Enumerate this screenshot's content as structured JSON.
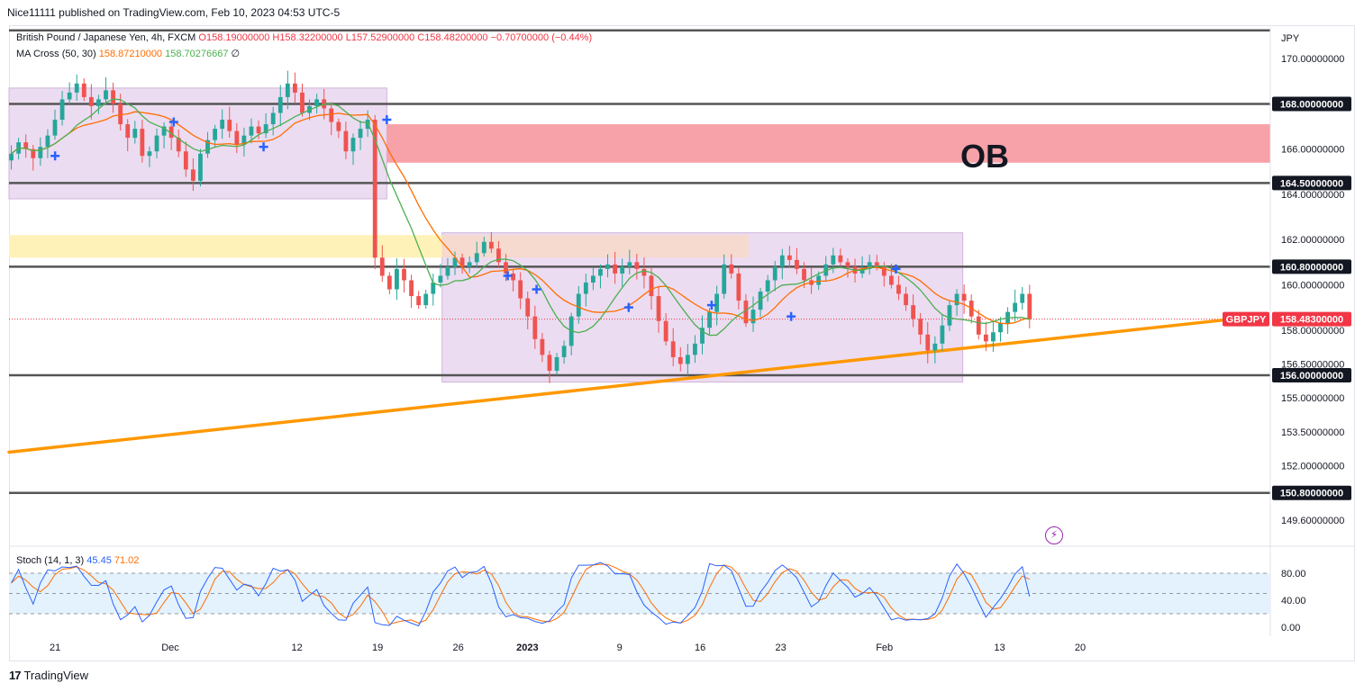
{
  "header": {
    "published": "Nice11111 published on TradingView.com, Feb 10, 2023 04:53 UTC-5"
  },
  "legend": {
    "symbol": "British Pound / Japanese Yen, 4h, FXCM",
    "ohlc": "O158.19000000 H158.32200000 L157.52900000 C158.48200000 −0.70700000 (−0.44%)",
    "ma_label": "MA Cross (50, 30)",
    "ma_value1": "158.87210000",
    "ma_value2": "158.70276667",
    "ma_tail": "∅",
    "stoch_label": "Stoch (14, 1, 3)",
    "stoch_k": "45.45",
    "stoch_d": "71.02"
  },
  "colors": {
    "candle_up": "#26a69a",
    "candle_down": "#ef5350",
    "ma_fast": "#4caf50",
    "ma_slow": "#ff6d00",
    "trendline": "#ff9800",
    "ob_zone": "#f7a1a8",
    "range_box": "#e9d6ef",
    "supply_strip": "#fff2b8",
    "level_line": "#555555",
    "badge_bg": "#131722",
    "price_badge": "#f23645",
    "stoch_k": "#2962ff",
    "stoch_d": "#ff6d00",
    "stoch_band": "#e3f2fd"
  },
  "annotations": {
    "ob_label": "OB"
  },
  "footer": {
    "logo_mark": "17",
    "logo_text": "TradingView"
  },
  "chart_data": {
    "type": "candlestick",
    "symbol": "GBPJPY",
    "timeframe": "4h",
    "currency_label": "JPY",
    "y_range": [
      148.6,
      171.4
    ],
    "price_ticks": [
      {
        "value": 170.0,
        "label": "170.00000000"
      },
      {
        "value": 166.0,
        "label": "166.00000000"
      },
      {
        "value": 164.0,
        "label": "164.00000000"
      },
      {
        "value": 162.0,
        "label": "162.00000000"
      },
      {
        "value": 160.0,
        "label": "160.00000000"
      },
      {
        "value": 158.0,
        "label": "158.00000000"
      },
      {
        "value": 156.5,
        "label": "156.50000000"
      },
      {
        "value": 155.0,
        "label": "155.00000000"
      },
      {
        "value": 153.5,
        "label": "153.50000000"
      },
      {
        "value": 152.0,
        "label": "152.00000000"
      },
      {
        "value": 149.6,
        "label": "149.60000000"
      }
    ],
    "levels": [
      {
        "value": 168.0,
        "label": "168.00000000"
      },
      {
        "value": 164.5,
        "label": "164.50000000"
      },
      {
        "value": 160.8,
        "label": "160.80000000"
      },
      {
        "value": 156.0,
        "label": "156.00000000"
      },
      {
        "value": 150.8,
        "label": "150.80000000"
      }
    ],
    "top_line": 171.25,
    "last_price": {
      "value": 158.483,
      "label": "158.48300000",
      "symbol": "GBPJPY"
    },
    "time_ticks": [
      {
        "day": 21,
        "label": "21"
      },
      {
        "day": 31,
        "label": "Dec"
      },
      {
        "day": 42,
        "label": "12"
      },
      {
        "day": 49,
        "label": "19"
      },
      {
        "day": 56,
        "label": "26"
      },
      {
        "day": 62,
        "label": "2023"
      },
      {
        "day": 70,
        "label": "9"
      },
      {
        "day": 77,
        "label": "16"
      },
      {
        "day": 84,
        "label": "23"
      },
      {
        "day": 93,
        "label": "Feb"
      },
      {
        "day": 103,
        "label": "13"
      },
      {
        "day": 110,
        "label": "20"
      }
    ],
    "x_range_days": [
      17,
      126.5
    ],
    "zones": {
      "order_block": {
        "from_day": 49.8,
        "to_day": 126.5,
        "low": 165.4,
        "high": 167.1
      },
      "left_range": {
        "from_day": 17,
        "to_day": 49.8,
        "low": 163.8,
        "high": 168.7
      },
      "middle_range": {
        "from_day": 54.6,
        "to_day": 99.8,
        "low": 155.7,
        "high": 162.3
      },
      "supply_strip": {
        "from_day": 17,
        "to_day": 54.6,
        "low": 161.2,
        "high": 162.2
      },
      "supply_strip_inner": {
        "from_day": 54.6,
        "to_day": 81.2,
        "low": 161.2,
        "high": 162.2
      }
    },
    "trendline": {
      "start": {
        "day": 17,
        "price": 152.6
      },
      "end": {
        "day": 125.3,
        "price": 158.6
      }
    },
    "closes": [
      165.8,
      166.3,
      166.0,
      165.6,
      166.1,
      166.6,
      167.3,
      168.2,
      168.5,
      168.9,
      168.3,
      167.9,
      168.2,
      168.6,
      168.0,
      167.1,
      166.5,
      166.9,
      165.7,
      165.9,
      166.6,
      167.0,
      166.5,
      165.9,
      165.1,
      164.6,
      165.8,
      166.4,
      166.9,
      167.3,
      166.8,
      166.2,
      166.6,
      167.0,
      166.7,
      167.1,
      167.6,
      168.3,
      168.9,
      168.5,
      167.6,
      167.9,
      168.2,
      167.8,
      167.2,
      166.8,
      165.9,
      166.5,
      166.9,
      167.3,
      161.2,
      160.4,
      159.8,
      160.7,
      160.2,
      159.5,
      159.1,
      159.6,
      160.1,
      160.4,
      160.8,
      161.2,
      160.8,
      161.0,
      161.4,
      161.9,
      161.6,
      161.0,
      160.5,
      160.2,
      159.4,
      158.6,
      157.6,
      156.9,
      156.2,
      156.8,
      157.3,
      158.6,
      159.6,
      160.1,
      160.4,
      160.7,
      160.9,
      160.5,
      160.8,
      161.0,
      160.7,
      160.4,
      159.5,
      158.4,
      157.5,
      156.8,
      156.5,
      156.9,
      157.4,
      158.1,
      158.8,
      159.6,
      160.9,
      160.5,
      159.3,
      158.3,
      158.9,
      159.7,
      160.2,
      160.8,
      161.3,
      161.1,
      160.7,
      160.2,
      160.0,
      160.4,
      160.9,
      161.3,
      161.0,
      160.8,
      160.5,
      160.7,
      161.0,
      160.8,
      160.4,
      160.0,
      159.6,
      159.1,
      158.5,
      157.8,
      157.1,
      157.4,
      158.2,
      159.1,
      159.6,
      159.3,
      158.6,
      157.8,
      157.5,
      157.9,
      158.3,
      158.8,
      159.2,
      159.6,
      158.48
    ],
    "cross_markers": [
      {
        "day": 21.0,
        "price": 165.7
      },
      {
        "day": 31.3,
        "price": 167.2
      },
      {
        "day": 39.1,
        "price": 166.1
      },
      {
        "day": 49.8,
        "price": 167.3
      },
      {
        "day": 60.3,
        "price": 160.4
      },
      {
        "day": 62.8,
        "price": 159.8
      },
      {
        "day": 70.8,
        "price": 159.0
      },
      {
        "day": 78.0,
        "price": 159.1
      },
      {
        "day": 84.9,
        "price": 158.6
      },
      {
        "day": 94.0,
        "price": 160.7
      }
    ],
    "stoch": {
      "range": [
        0,
        100
      ],
      "ticks": [
        {
          "value": 80,
          "label": "80.00"
        },
        {
          "value": 40,
          "label": "40.00"
        },
        {
          "value": 0,
          "label": "0.00"
        }
      ],
      "bands": [
        20,
        80
      ],
      "k_last": 45.45,
      "d_last": 71.02
    }
  }
}
